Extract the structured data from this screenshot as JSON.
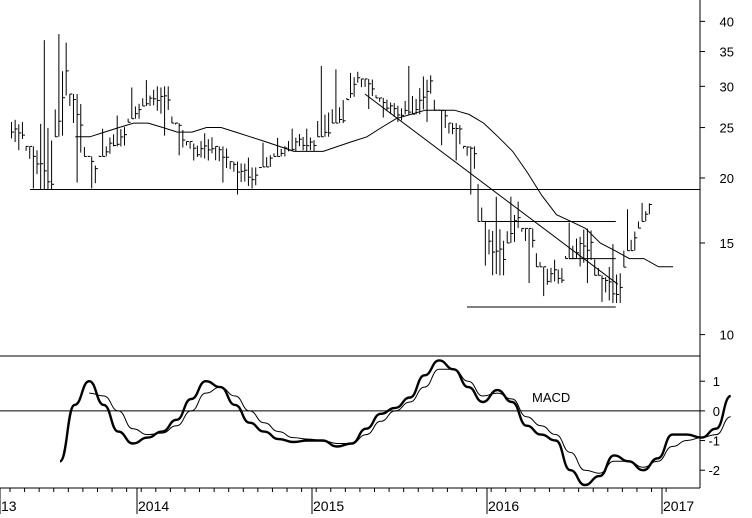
{
  "chart_data": [
    {
      "type": "bar",
      "subtype": "ohlc-price",
      "y_scale": "log",
      "ylim": [
        9.3,
        43
      ],
      "y_ticks": [
        10,
        15,
        20,
        25,
        30,
        35,
        40
      ],
      "x_ticks": [
        "13",
        "2014",
        "2015",
        "2016",
        "2017"
      ],
      "grid": false,
      "x_start": "2013-07",
      "x_step": "1 month",
      "monthly_close": [
        24.5,
        21.5,
        19.5,
        32.0,
        25.0,
        20.5,
        23.0,
        24.0,
        27.0,
        28.5,
        28.5,
        24.0,
        22.5,
        23.0,
        22.0,
        20.5,
        20.0,
        21.5,
        22.5,
        23.5,
        23.0,
        24.5,
        26.0,
        31.5,
        30.0,
        27.5,
        26.5,
        27.0,
        30.5,
        26.0,
        24.5,
        22.0,
        15.0,
        14.0,
        17.0,
        15.5,
        13.0,
        13.0,
        14.5,
        15.0,
        12.5,
        12.0,
        15.0,
        17.5
      ],
      "monthly_high": [
        26.0,
        23.0,
        37.0,
        38.0,
        29.0,
        22.0,
        25.0,
        26.5,
        30.0,
        31.0,
        30.0,
        25.5,
        23.5,
        24.5,
        23.0,
        21.5,
        22.0,
        23.5,
        24.0,
        25.0,
        25.0,
        33.0,
        32.5,
        32.0,
        31.0,
        28.5,
        28.0,
        33.0,
        31.5,
        27.0,
        25.5,
        23.0,
        16.5,
        18.5,
        18.5,
        16.0,
        13.5,
        14.0,
        16.5,
        16.0,
        13.0,
        15.0,
        17.5,
        18.0
      ],
      "monthly_low": [
        22.5,
        19.0,
        19.0,
        24.0,
        19.5,
        19.0,
        22.0,
        23.0,
        26.0,
        27.5,
        24.0,
        22.0,
        21.5,
        21.5,
        19.5,
        18.5,
        19.0,
        21.0,
        22.0,
        22.5,
        22.5,
        24.0,
        25.5,
        28.5,
        27.0,
        26.0,
        25.5,
        26.5,
        25.5,
        23.0,
        21.5,
        18.5,
        13.5,
        13.0,
        15.0,
        12.5,
        11.8,
        12.5,
        14.0,
        12.5,
        11.5,
        11.5,
        14.5,
        16.5
      ],
      "moving_average": [
        24.0,
        24.0,
        24.5,
        25.0,
        25.5,
        25.5,
        25.0,
        24.5,
        24.5,
        25.0,
        25.0,
        24.5,
        24.0,
        23.5,
        23.0,
        22.5,
        22.5,
        22.5,
        23.0,
        23.5,
        24.0,
        25.0,
        26.0,
        26.5,
        27.0,
        27.0,
        27.0,
        26.5,
        25.5,
        24.0,
        22.5,
        20.5,
        18.5,
        17.0,
        16.5,
        16.0,
        15.0,
        14.5,
        14.0,
        14.0,
        13.5,
        13.5
      ],
      "trendlines": [
        {
          "kind": "horizontal",
          "y": 19.0,
          "from": "2013-07",
          "to": "2016-12"
        },
        {
          "kind": "horizontal",
          "y": 16.5,
          "from": "2016-03",
          "to": "2016-12"
        },
        {
          "kind": "horizontal",
          "y": 14.0,
          "from": "2016-09",
          "to": "2016-12"
        },
        {
          "kind": "horizontal",
          "y": 11.3,
          "from": "2016-02",
          "to": "2016-12"
        },
        {
          "kind": "sloped",
          "from": [
            "2015-07",
            29.0
          ],
          "to": [
            "2016-12",
            12.5
          ]
        }
      ]
    },
    {
      "type": "line",
      "title": "MACD",
      "ylim": [
        -2.6,
        1.85
      ],
      "y_ticks": [
        -2,
        -1,
        0,
        1
      ],
      "x_ticks": [
        "13",
        "2014",
        "2015",
        "2016",
        "2017"
      ],
      "x_start": "2013-07",
      "x_step": "1 month",
      "series": [
        {
          "values": [
            -1.7,
            0.2,
            1.0,
            0.2,
            -0.7,
            -1.1,
            -0.9,
            -0.7,
            -0.3,
            0.4,
            1.0,
            0.8,
            0.2,
            -0.4,
            -0.7,
            -0.95,
            -1.05,
            -1.0,
            -1.0,
            -1.2,
            -1.1,
            -0.6,
            -0.1,
            0.1,
            0.45,
            1.2,
            1.7,
            1.4,
            0.8,
            0.3,
            0.7,
            0.3,
            -0.5,
            -0.8,
            -1.0,
            -2.0,
            -2.5,
            -2.2,
            -1.5,
            -1.7,
            -2.0,
            -1.6,
            -0.8,
            -0.8,
            -0.9,
            -0.6,
            0.5
          ]
        },
        {
          "values": [
            null,
            null,
            0.6,
            0.5,
            0.0,
            -0.6,
            -0.8,
            -0.75,
            -0.5,
            0.0,
            0.6,
            0.8,
            0.5,
            0.0,
            -0.4,
            -0.7,
            -0.9,
            -0.95,
            -1.0,
            -1.1,
            -1.1,
            -0.8,
            -0.35,
            0.0,
            0.3,
            0.8,
            1.4,
            1.4,
            1.0,
            0.5,
            0.6,
            0.4,
            -0.2,
            -0.5,
            -0.8,
            -1.4,
            -2.0,
            -2.1,
            -1.7,
            -1.7,
            -1.9,
            -1.7,
            -1.2,
            -1.0,
            -0.9,
            -0.8,
            -0.2
          ]
        }
      ]
    }
  ]
}
